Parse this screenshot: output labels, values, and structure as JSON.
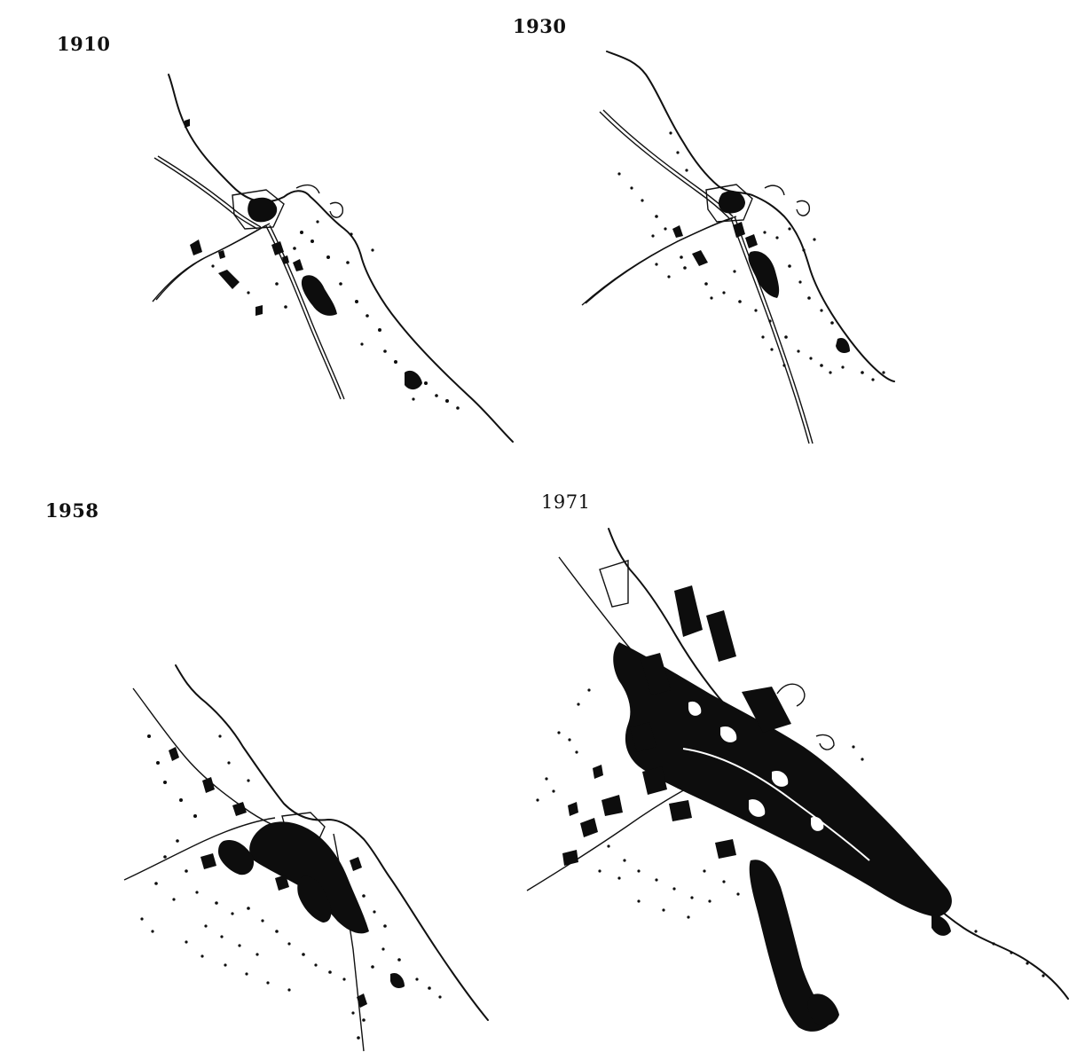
{
  "panels": [
    {
      "year": "1910"
    },
    {
      "year": "1930"
    },
    {
      "year": "1958"
    },
    {
      "year": "1971"
    }
  ]
}
